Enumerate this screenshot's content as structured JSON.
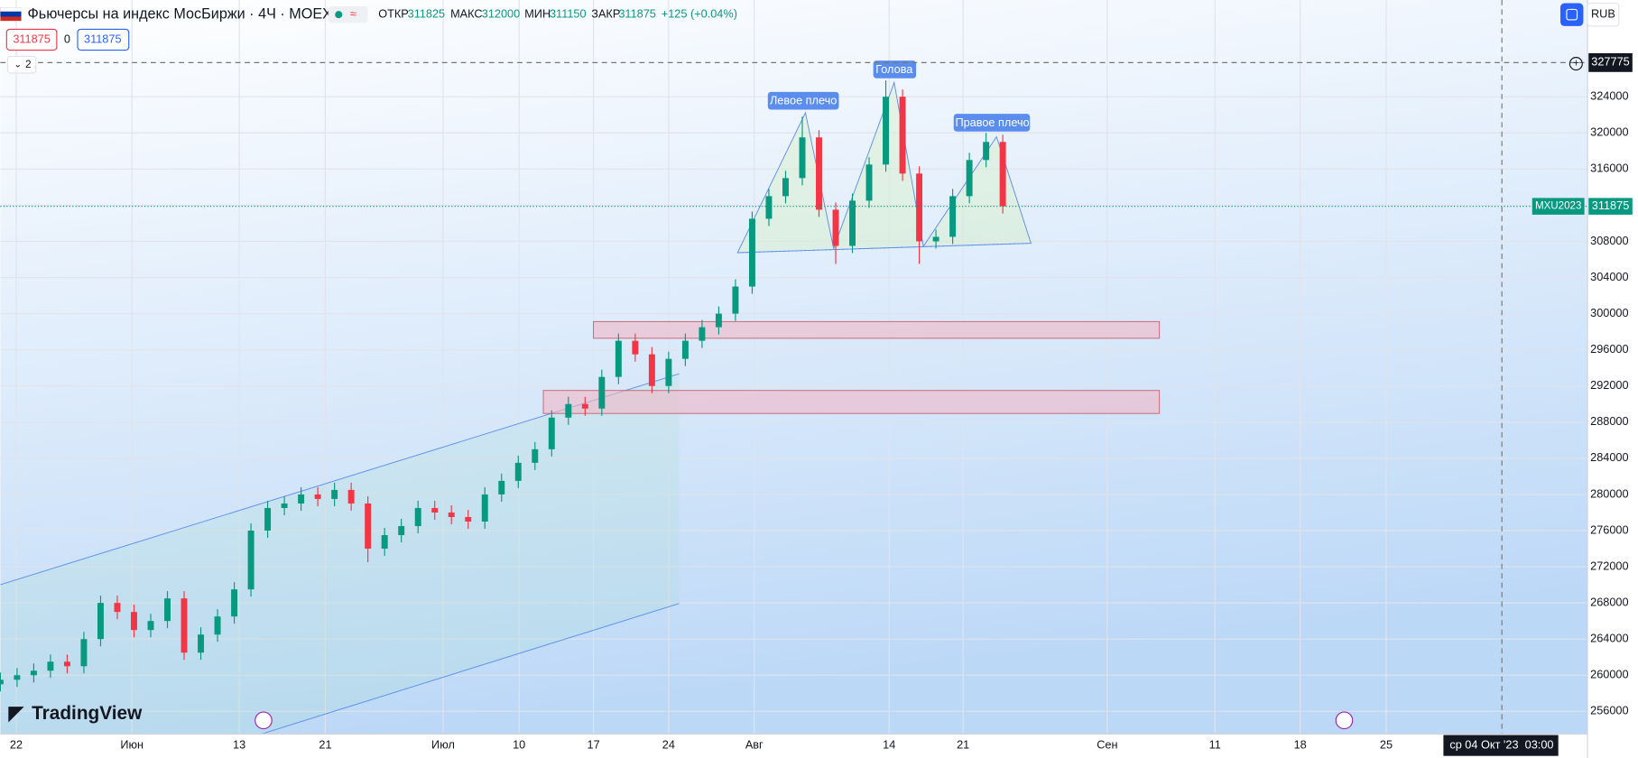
{
  "header": {
    "flag": "",
    "title": "Фьючерсы на индекс МосБиржи · 4Ч · MOEX",
    "open_label": "ОТКР",
    "open": 311825,
    "high_label": "МАКС",
    "high": 312000,
    "low_label": "МИН",
    "low": 311150,
    "close_label": "ЗАКР",
    "close": 311875,
    "change": "+125 (+0.04%)",
    "bid": 311875,
    "spread": 0,
    "ask": 311875,
    "indicators": "2",
    "currency": "RUB",
    "logo": "TradingView",
    "cursor_date": "ср 04 Окт '23",
    "cursor_time": "03:00"
  },
  "chart_data": {
    "type": "candlestick",
    "annotations": [
      "Левое плечо",
      "Голова",
      "Правое плечо"
    ],
    "price_labels": {
      "cursor": 327775,
      "symbol": "MXU2023",
      "last": 311875
    },
    "up_color": "#089981",
    "down_color": "#f23645",
    "grid": true,
    "xlim": [
      0,
      190
    ],
    "ylim": [
      253500,
      334700
    ],
    "xticks": [
      {
        "value": 1.9,
        "label": "22"
      },
      {
        "value": 15.75,
        "label": "Июн"
      },
      {
        "value": 28.6,
        "label": "13"
      },
      {
        "value": 38.9,
        "label": "21"
      },
      {
        "value": 53,
        "label": "Июл"
      },
      {
        "value": 62.1,
        "label": "10"
      },
      {
        "value": 71,
        "label": "17"
      },
      {
        "value": 80,
        "label": "24"
      },
      {
        "value": 90.25,
        "label": "Авг"
      },
      {
        "value": 106.4,
        "label": "14"
      },
      {
        "value": 115.25,
        "label": "21"
      },
      {
        "value": 132.5,
        "label": "Сен"
      },
      {
        "value": 145.4,
        "label": "11"
      },
      {
        "value": 155.6,
        "label": "18"
      },
      {
        "value": 165.9,
        "label": "25"
      }
    ],
    "yticks": [
      256000,
      260000,
      264000,
      268000,
      272000,
      276000,
      280000,
      284000,
      288000,
      292000,
      296000,
      300000,
      304000,
      308000,
      312000,
      316000,
      320000,
      324000
    ],
    "x": [
      0,
      2,
      4,
      6,
      8,
      10,
      12,
      14,
      16,
      18,
      20,
      22,
      24,
      26,
      28,
      30,
      32,
      34,
      36,
      38,
      40,
      42,
      44,
      46,
      48,
      50,
      52,
      54,
      56,
      58,
      60,
      62,
      64,
      66,
      68,
      70,
      72,
      74,
      76,
      78,
      80,
      82,
      84,
      86,
      88,
      90,
      92,
      94,
      96,
      98,
      100,
      102,
      104,
      106,
      108,
      110,
      112,
      114,
      116,
      118,
      120
    ],
    "open": [
      259000,
      259500,
      260000,
      260500,
      261500,
      261000,
      264000,
      268000,
      267000,
      265000,
      266000,
      268500,
      262500,
      264500,
      266500,
      269500,
      276000,
      278500,
      279000,
      280000,
      279500,
      280500,
      279000,
      274000,
      275500,
      276500,
      278500,
      278000,
      277500,
      277000,
      280000,
      281500,
      283500,
      285000,
      288500,
      290000,
      289500,
      293000,
      297000,
      295500,
      292000,
      295000,
      297000,
      298500,
      300000,
      303000,
      310500,
      313000,
      315000,
      319500,
      311500,
      307500,
      312500,
      316500,
      324000,
      315500,
      308000,
      308500,
      313000,
      317000,
      319000
    ],
    "high": [
      260300,
      260800,
      261300,
      262300,
      262300,
      264800,
      268800,
      268800,
      267800,
      266800,
      269300,
      269300,
      265300,
      267300,
      270300,
      276800,
      279300,
      279800,
      280800,
      280800,
      281300,
      281300,
      279800,
      276300,
      277300,
      279300,
      279300,
      278800,
      278300,
      280800,
      282300,
      284300,
      285800,
      289300,
      290800,
      290800,
      293800,
      297800,
      297800,
      296300,
      295800,
      297800,
      299300,
      300800,
      303800,
      311300,
      313800,
      315800,
      321800,
      320300,
      312300,
      313300,
      317300,
      325800,
      324800,
      316300,
      309300,
      313800,
      317800,
      320000,
      319800
    ],
    "low": [
      258200,
      258700,
      259200,
      259700,
      260200,
      260200,
      263200,
      266200,
      264200,
      264200,
      265200,
      261700,
      261700,
      263700,
      265700,
      268700,
      275200,
      277700,
      278200,
      278700,
      278700,
      278200,
      272500,
      273200,
      274700,
      275700,
      277200,
      276700,
      276200,
      276200,
      279200,
      280700,
      282700,
      284200,
      287700,
      288700,
      288700,
      292200,
      294700,
      291200,
      291200,
      294200,
      296200,
      297700,
      299200,
      302200,
      309700,
      312200,
      314200,
      310700,
      305500,
      306700,
      311700,
      315700,
      314700,
      305500,
      307200,
      307700,
      312200,
      316200,
      311075
    ],
    "close": [
      259500,
      260000,
      260500,
      261500,
      261000,
      264000,
      268000,
      267000,
      265000,
      266000,
      268500,
      262500,
      264500,
      266500,
      269500,
      276000,
      278500,
      279000,
      280000,
      279500,
      280500,
      279000,
      274000,
      275500,
      276500,
      278500,
      278000,
      277500,
      277000,
      280000,
      281500,
      283500,
      285000,
      288500,
      290000,
      289500,
      293000,
      297000,
      295500,
      292000,
      295000,
      297000,
      298500,
      300000,
      303000,
      310500,
      313000,
      315000,
      319500,
      311500,
      307500,
      312500,
      316500,
      324000,
      315500,
      308000,
      308500,
      313000,
      317000,
      319000,
      311875
    ]
  }
}
